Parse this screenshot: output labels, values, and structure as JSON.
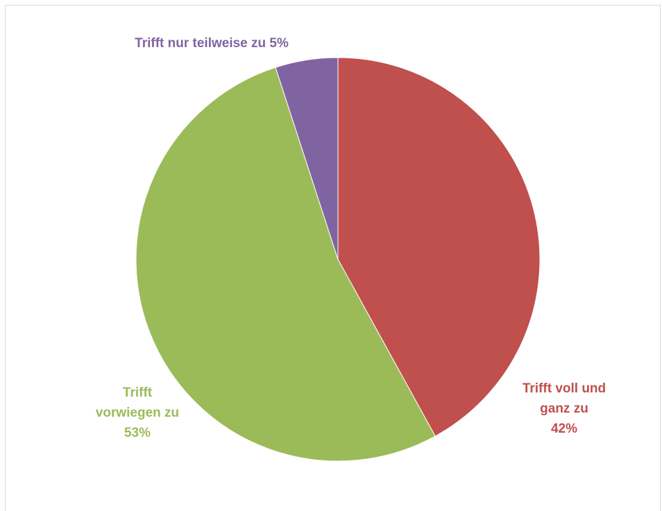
{
  "chart_data": {
    "type": "pie",
    "categories": [
      "Trifft voll und ganz zu",
      "Trifft vorwiegen zu",
      "Trifft nur teilweise zu"
    ],
    "values": [
      42,
      53,
      5
    ],
    "unit": "%",
    "colors": [
      "#c0504d",
      "#9bbb59",
      "#8064a2"
    ],
    "labels": {
      "voll": [
        "Trifft voll und",
        "ganz zu",
        "42%"
      ],
      "vorwiegen": [
        "Trifft",
        "vorwiegen zu",
        "53%"
      ],
      "teilweise": [
        "Trifft nur teilweise zu 5%"
      ]
    },
    "legend": "none"
  }
}
